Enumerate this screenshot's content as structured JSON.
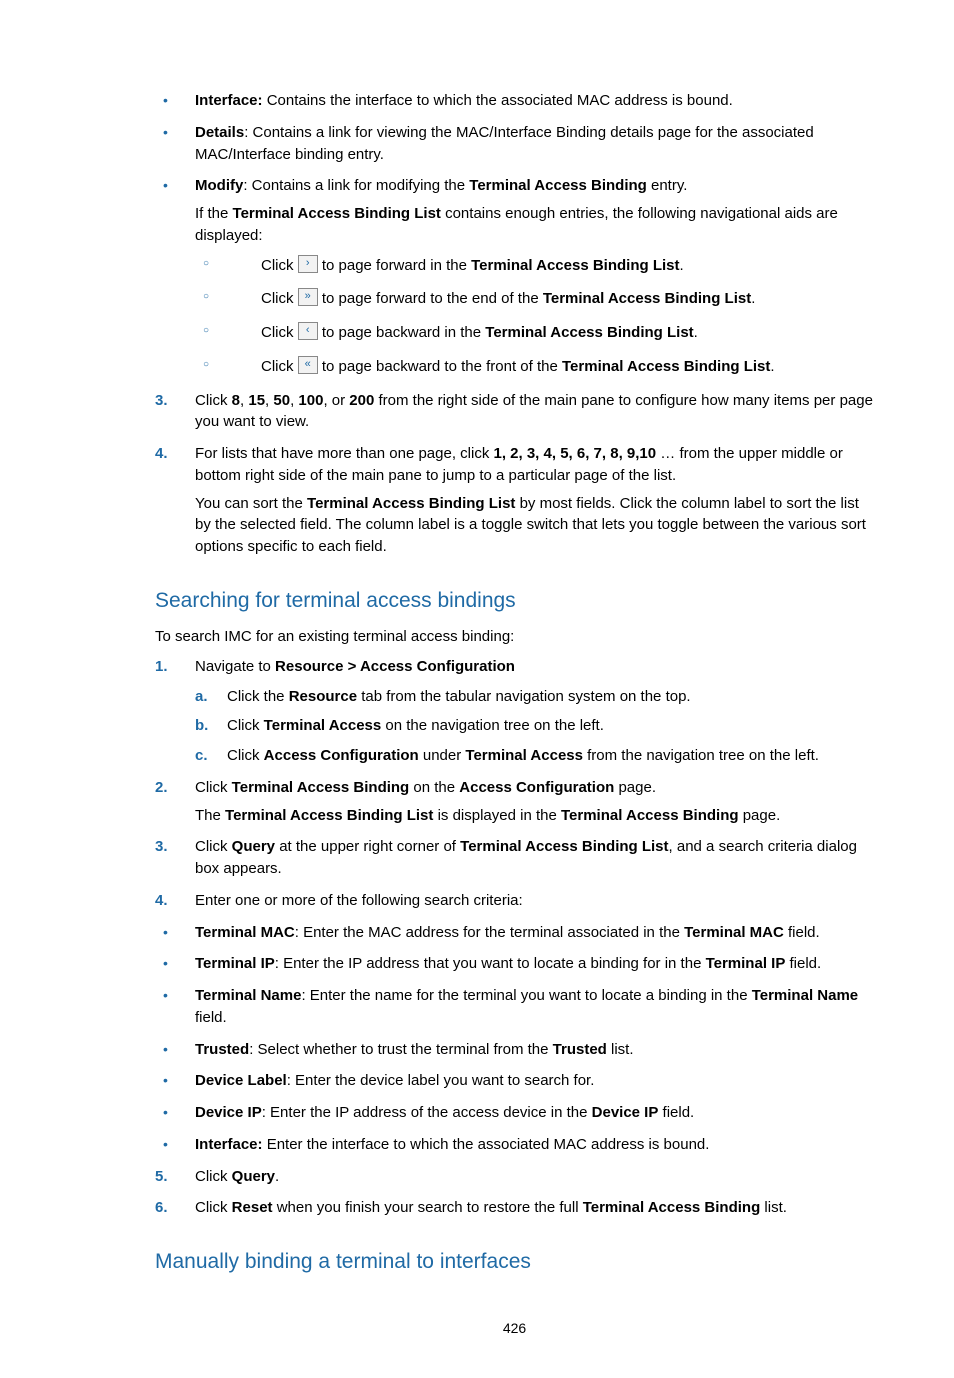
{
  "colors": {
    "accent": "#1f6aa5",
    "text": "#000000",
    "btn_border": "#888888",
    "btn_bg": "#f2f2f2",
    "page_bg": "#ffffff"
  },
  "typography": {
    "body_family": "Arial, Helvetica, sans-serif",
    "body_size_pt": 11,
    "heading_size_pt": 16,
    "line_height": 1.45
  },
  "top_bullets": [
    {
      "label_strong": "Interface:",
      "text_after": " Contains the interface to which the associated MAC address is bound."
    },
    {
      "label_strong": "Details",
      "text_after": ": Contains a link for viewing the MAC/Interface Binding details page for the associated MAC/Interface binding entry."
    }
  ],
  "modify_line": {
    "pre": "",
    "label_strong": "Modify",
    "after_label": ": Contains a link for modifying the ",
    "inline_strong": "Terminal Access Binding",
    "trail": " entry."
  },
  "modify_para": {
    "pre": "If the ",
    "strong": "Terminal Access Binding List",
    "post": " contains enough entries, the following navigational aids are displayed:"
  },
  "nav_sub": [
    {
      "click": "Click ",
      "glyph": "›",
      "after": " to page forward in the ",
      "strong": "Terminal Access Binding List",
      "end": "."
    },
    {
      "click": "Click ",
      "glyph": "»",
      "after": " to page forward to the end of the ",
      "strong": "Terminal Access Binding List",
      "end": "."
    },
    {
      "click": "Click ",
      "glyph": "‹",
      "after": " to page backward in the ",
      "strong": "Terminal Access Binding List",
      "end": "."
    },
    {
      "click": "Click ",
      "glyph": "«",
      "after": " to page backward to the front of the ",
      "strong": "Terminal Access Binding List",
      "end": "."
    }
  ],
  "step3": {
    "marker": "3.",
    "pre": "Click ",
    "b1": "8",
    "c1": ", ",
    "b2": "15",
    "c2": ", ",
    "b3": "50",
    "c3": ", ",
    "b4": "100",
    "c4": ", or ",
    "b5": "200",
    "post": " from the right side of the main pane to configure how many items per page you want to view."
  },
  "step4": {
    "marker": "4.",
    "pre": "For lists that have more than one page, click ",
    "nums": "1, 2, 3, 4, 5, 6, 7, 8, 9,10",
    "post": " … from the upper middle or bottom right side of the main pane to jump to a particular page of the list."
  },
  "step4_para": {
    "pre": "You can sort the ",
    "strong": "Terminal Access Binding List",
    "post": " by most fields. Click the column label to sort the list by the selected field. The column label is a toggle switch that lets you toggle between the various sort options specific to each field."
  },
  "heading1": "Searching for terminal access bindings",
  "intro1": "To search IMC for an existing terminal access binding:",
  "s1": {
    "marker": "1.",
    "pre": "Navigate to ",
    "strong": "Resource > Access Configuration"
  },
  "s1a": {
    "marker": "a.",
    "pre": "Click the ",
    "strong": "Resource",
    "post": " tab from the tabular navigation system on the top."
  },
  "s1b": {
    "marker": "b.",
    "pre": "Click ",
    "strong": "Terminal Access",
    "post": " on the navigation tree on the left."
  },
  "s1c": {
    "marker": "c.",
    "pre": "Click ",
    "strong1": "Access Configuration",
    "mid": " under ",
    "strong2": "Terminal Access",
    "post": " from the navigation tree on the left."
  },
  "s2": {
    "marker": "2.",
    "pre": "Click ",
    "strong1": "Terminal Access Binding",
    "mid": " on the ",
    "strong2": "Access Configuration",
    "post": " page."
  },
  "s2_para": {
    "pre": "The ",
    "strong1": "Terminal Access Binding List",
    "mid": " is displayed in the ",
    "strong2": "Terminal Access Binding",
    "post": " page."
  },
  "s3": {
    "marker": "3.",
    "pre": "Click ",
    "strong1": "Query",
    "mid": " at the upper right corner of ",
    "strong2": "Terminal Access Binding List",
    "post": ", and a search criteria dialog box appears."
  },
  "s4": {
    "marker": "4.",
    "text": "Enter one or more of the following search criteria:"
  },
  "criteria": [
    {
      "label": "Terminal MAC",
      "pre": "",
      "mid": ": Enter the MAC address for the terminal associated in the ",
      "inline": "Terminal MAC",
      "end": " field."
    },
    {
      "label": "Terminal IP",
      "pre": "",
      "mid": ": Enter the IP address that you want to locate a binding for in the ",
      "inline": "Terminal IP",
      "end": " field."
    },
    {
      "label": "Terminal Name",
      "pre": "",
      "mid": ": Enter the name for the terminal you want to locate a binding in the ",
      "inline": "Terminal Name",
      "end": " field."
    },
    {
      "label": "Trusted",
      "pre": "",
      "mid": ": Select whether to trust the terminal from the ",
      "inline": "Trusted",
      "end": " list."
    },
    {
      "label": "Device Label",
      "pre": "",
      "mid": ": Enter the device label you want to search for.",
      "inline": "",
      "end": ""
    },
    {
      "label": "Device IP",
      "pre": "",
      "mid": ": Enter the IP address of the access device in the ",
      "inline": "Device IP",
      "end": " field."
    },
    {
      "label": "Interface:",
      "pre": "",
      "mid": " Enter the interface to which the associated MAC address is bound.",
      "inline": "",
      "end": ""
    }
  ],
  "s5": {
    "marker": "5.",
    "pre": "Click ",
    "strong": "Query",
    "post": "."
  },
  "s6": {
    "marker": "6.",
    "pre": "Click ",
    "strong1": "Reset",
    "mid": " when you finish your search to restore the full ",
    "strong2": "Terminal Access Binding",
    "post": " list."
  },
  "heading2": "Manually binding a terminal to interfaces",
  "page_number": "426"
}
